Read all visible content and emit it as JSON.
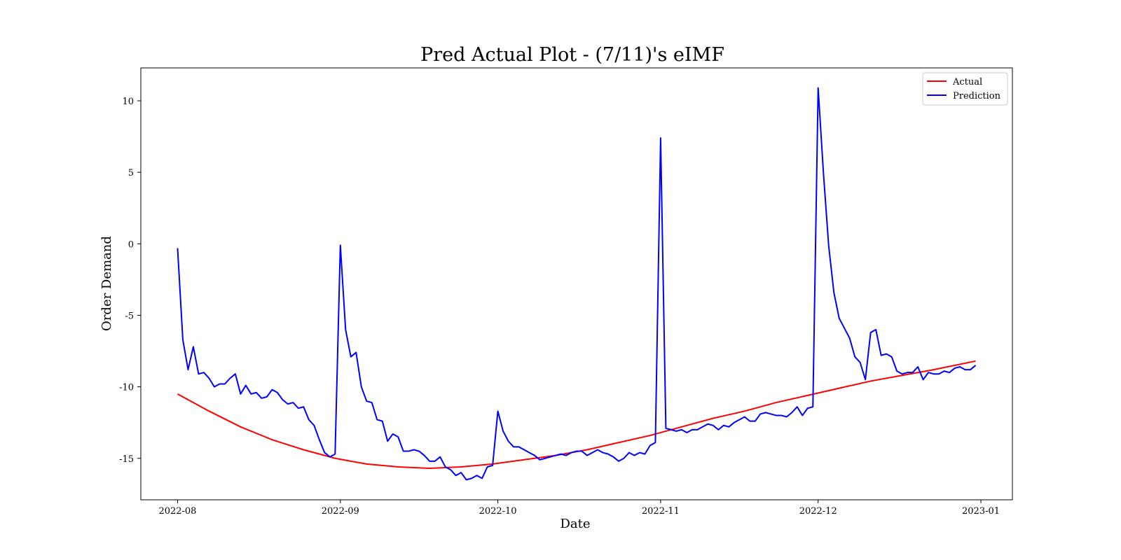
{
  "chart_data": {
    "type": "line",
    "title": "Pred Actual Plot - (7/11)'s eIMF",
    "xlabel": "Date",
    "ylabel": "Order Demand",
    "x_ticks": [
      "2022-08",
      "2022-09",
      "2022-10",
      "2022-11",
      "2022-12",
      "2023-01"
    ],
    "y_ticks": [
      "10",
      "5",
      "0",
      "-5",
      "-10",
      "-15"
    ],
    "y_tick_values": [
      10,
      5,
      0,
      -5,
      -10,
      -15
    ],
    "xlim": [
      "2022-07-25",
      "2023-01-07"
    ],
    "ylim": [
      -17.9,
      12.3
    ],
    "grid": false,
    "legend_position": "top-right",
    "series": [
      {
        "name": "Actual",
        "color": "#ff0000",
        "points": [
          [
            "2022-08-01",
            -10.5
          ],
          [
            "2022-08-07",
            -11.7
          ],
          [
            "2022-08-13",
            -12.8
          ],
          [
            "2022-08-19",
            -13.7
          ],
          [
            "2022-08-25",
            -14.4
          ],
          [
            "2022-08-31",
            -15.0
          ],
          [
            "2022-09-06",
            -15.4
          ],
          [
            "2022-09-12",
            -15.6
          ],
          [
            "2022-09-18",
            -15.7
          ],
          [
            "2022-09-24",
            -15.6
          ],
          [
            "2022-09-30",
            -15.4
          ],
          [
            "2022-10-06",
            -15.1
          ],
          [
            "2022-10-12",
            -14.8
          ],
          [
            "2022-10-18",
            -14.4
          ],
          [
            "2022-10-24",
            -13.9
          ],
          [
            "2022-10-30",
            -13.4
          ],
          [
            "2022-11-05",
            -12.8
          ],
          [
            "2022-11-11",
            -12.2
          ],
          [
            "2022-11-17",
            -11.7
          ],
          [
            "2022-11-23",
            -11.1
          ],
          [
            "2022-11-29",
            -10.6
          ],
          [
            "2022-12-05",
            -10.1
          ],
          [
            "2022-12-11",
            -9.6
          ],
          [
            "2022-12-17",
            -9.2
          ],
          [
            "2022-12-23",
            -8.8
          ],
          [
            "2022-12-31",
            -8.2
          ]
        ]
      },
      {
        "name": "Prediction",
        "color": "#0000ff",
        "points": [
          [
            "2022-08-01",
            -0.3
          ],
          [
            "2022-08-02",
            -6.7
          ],
          [
            "2022-08-03",
            -8.8
          ],
          [
            "2022-08-04",
            -7.2
          ],
          [
            "2022-08-05",
            -9.1
          ],
          [
            "2022-08-06",
            -9.0
          ],
          [
            "2022-08-07",
            -9.4
          ],
          [
            "2022-08-08",
            -10.0
          ],
          [
            "2022-08-09",
            -9.8
          ],
          [
            "2022-08-10",
            -9.8
          ],
          [
            "2022-08-11",
            -9.4
          ],
          [
            "2022-08-12",
            -9.1
          ],
          [
            "2022-08-13",
            -10.5
          ],
          [
            "2022-08-14",
            -9.9
          ],
          [
            "2022-08-15",
            -10.5
          ],
          [
            "2022-08-16",
            -10.4
          ],
          [
            "2022-08-17",
            -10.8
          ],
          [
            "2022-08-18",
            -10.7
          ],
          [
            "2022-08-19",
            -10.2
          ],
          [
            "2022-08-20",
            -10.4
          ],
          [
            "2022-08-21",
            -10.9
          ],
          [
            "2022-08-22",
            -11.2
          ],
          [
            "2022-08-23",
            -11.1
          ],
          [
            "2022-08-24",
            -11.5
          ],
          [
            "2022-08-25",
            -11.4
          ],
          [
            "2022-08-26",
            -12.3
          ],
          [
            "2022-08-27",
            -12.7
          ],
          [
            "2022-08-28",
            -13.7
          ],
          [
            "2022-08-29",
            -14.6
          ],
          [
            "2022-08-30",
            -14.9
          ],
          [
            "2022-08-31",
            -14.7
          ],
          [
            "2022-09-01",
            -0.1
          ],
          [
            "2022-09-02",
            -6.0
          ],
          [
            "2022-09-03",
            -7.9
          ],
          [
            "2022-09-04",
            -7.6
          ],
          [
            "2022-09-05",
            -10.0
          ],
          [
            "2022-09-06",
            -11.0
          ],
          [
            "2022-09-07",
            -11.1
          ],
          [
            "2022-09-08",
            -12.3
          ],
          [
            "2022-09-09",
            -12.4
          ],
          [
            "2022-09-10",
            -13.8
          ],
          [
            "2022-09-11",
            -13.3
          ],
          [
            "2022-09-12",
            -13.5
          ],
          [
            "2022-09-13",
            -14.5
          ],
          [
            "2022-09-14",
            -14.5
          ],
          [
            "2022-09-15",
            -14.4
          ],
          [
            "2022-09-16",
            -14.5
          ],
          [
            "2022-09-17",
            -14.8
          ],
          [
            "2022-09-18",
            -15.2
          ],
          [
            "2022-09-19",
            -15.2
          ],
          [
            "2022-09-20",
            -14.9
          ],
          [
            "2022-09-21",
            -15.6
          ],
          [
            "2022-09-22",
            -15.8
          ],
          [
            "2022-09-23",
            -16.2
          ],
          [
            "2022-09-24",
            -16.0
          ],
          [
            "2022-09-25",
            -16.5
          ],
          [
            "2022-09-26",
            -16.4
          ],
          [
            "2022-09-27",
            -16.2
          ],
          [
            "2022-09-28",
            -16.4
          ],
          [
            "2022-09-29",
            -15.6
          ],
          [
            "2022-09-30",
            -15.5
          ],
          [
            "2022-10-01",
            -11.7
          ],
          [
            "2022-10-02",
            -13.1
          ],
          [
            "2022-10-03",
            -13.8
          ],
          [
            "2022-10-04",
            -14.2
          ],
          [
            "2022-10-05",
            -14.2
          ],
          [
            "2022-10-06",
            -14.4
          ],
          [
            "2022-10-07",
            -14.6
          ],
          [
            "2022-10-08",
            -14.8
          ],
          [
            "2022-10-09",
            -15.1
          ],
          [
            "2022-10-10",
            -15.0
          ],
          [
            "2022-10-11",
            -14.9
          ],
          [
            "2022-10-12",
            -14.8
          ],
          [
            "2022-10-13",
            -14.7
          ],
          [
            "2022-10-14",
            -14.8
          ],
          [
            "2022-10-15",
            -14.6
          ],
          [
            "2022-10-16",
            -14.5
          ],
          [
            "2022-10-17",
            -14.5
          ],
          [
            "2022-10-18",
            -14.8
          ],
          [
            "2022-10-19",
            -14.6
          ],
          [
            "2022-10-20",
            -14.4
          ],
          [
            "2022-10-21",
            -14.6
          ],
          [
            "2022-10-22",
            -14.7
          ],
          [
            "2022-10-23",
            -14.9
          ],
          [
            "2022-10-24",
            -15.2
          ],
          [
            "2022-10-25",
            -15.0
          ],
          [
            "2022-10-26",
            -14.6
          ],
          [
            "2022-10-27",
            -14.8
          ],
          [
            "2022-10-28",
            -14.6
          ],
          [
            "2022-10-29",
            -14.7
          ],
          [
            "2022-10-30",
            -14.1
          ],
          [
            "2022-10-31",
            -13.9
          ],
          [
            "2022-11-01",
            7.4
          ],
          [
            "2022-11-02",
            -12.9
          ],
          [
            "2022-11-03",
            -13.0
          ],
          [
            "2022-11-04",
            -13.1
          ],
          [
            "2022-11-05",
            -13.0
          ],
          [
            "2022-11-06",
            -13.2
          ],
          [
            "2022-11-07",
            -13.0
          ],
          [
            "2022-11-08",
            -13.0
          ],
          [
            "2022-11-09",
            -12.8
          ],
          [
            "2022-11-10",
            -12.6
          ],
          [
            "2022-11-11",
            -12.7
          ],
          [
            "2022-11-12",
            -13.0
          ],
          [
            "2022-11-13",
            -12.7
          ],
          [
            "2022-11-14",
            -12.8
          ],
          [
            "2022-11-15",
            -12.5
          ],
          [
            "2022-11-16",
            -12.3
          ],
          [
            "2022-11-17",
            -12.1
          ],
          [
            "2022-11-18",
            -12.4
          ],
          [
            "2022-11-19",
            -12.4
          ],
          [
            "2022-11-20",
            -11.9
          ],
          [
            "2022-11-21",
            -11.8
          ],
          [
            "2022-11-22",
            -11.9
          ],
          [
            "2022-11-23",
            -12.0
          ],
          [
            "2022-11-24",
            -12.0
          ],
          [
            "2022-11-25",
            -12.1
          ],
          [
            "2022-11-26",
            -11.8
          ],
          [
            "2022-11-27",
            -11.4
          ],
          [
            "2022-11-28",
            -12.0
          ],
          [
            "2022-11-29",
            -11.5
          ],
          [
            "2022-11-30",
            -11.4
          ],
          [
            "2022-12-01",
            10.9
          ],
          [
            "2022-12-02",
            5.0
          ],
          [
            "2022-12-03",
            -0.1
          ],
          [
            "2022-12-04",
            -3.4
          ],
          [
            "2022-12-05",
            -5.2
          ],
          [
            "2022-12-06",
            -5.9
          ],
          [
            "2022-12-07",
            -6.6
          ],
          [
            "2022-12-08",
            -7.9
          ],
          [
            "2022-12-09",
            -8.3
          ],
          [
            "2022-12-10",
            -9.5
          ],
          [
            "2022-12-11",
            -6.2
          ],
          [
            "2022-12-12",
            -6.0
          ],
          [
            "2022-12-13",
            -7.8
          ],
          [
            "2022-12-14",
            -7.7
          ],
          [
            "2022-12-15",
            -7.9
          ],
          [
            "2022-12-16",
            -8.9
          ],
          [
            "2022-12-17",
            -9.1
          ],
          [
            "2022-12-18",
            -9.0
          ],
          [
            "2022-12-19",
            -9.0
          ],
          [
            "2022-12-20",
            -8.6
          ],
          [
            "2022-12-21",
            -9.5
          ],
          [
            "2022-12-22",
            -9.0
          ],
          [
            "2022-12-23",
            -9.1
          ],
          [
            "2022-12-24",
            -9.1
          ],
          [
            "2022-12-25",
            -8.9
          ],
          [
            "2022-12-26",
            -9.0
          ],
          [
            "2022-12-27",
            -8.7
          ],
          [
            "2022-12-28",
            -8.6
          ],
          [
            "2022-12-29",
            -8.8
          ],
          [
            "2022-12-30",
            -8.8
          ],
          [
            "2022-12-31",
            -8.5
          ]
        ]
      }
    ]
  }
}
